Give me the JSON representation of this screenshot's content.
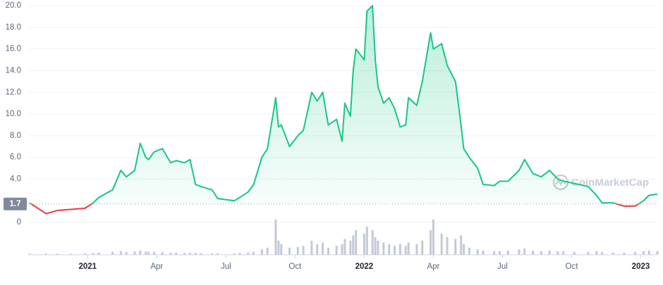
{
  "chart_data": {
    "type": "line",
    "x": [
      2020.79,
      2020.85,
      2020.89,
      2020.94,
      2020.99,
      2021.02,
      2021.04,
      2021.09,
      2021.12,
      2021.14,
      2021.17,
      2021.19,
      2021.21,
      2021.22,
      2021.24,
      2021.27,
      2021.3,
      2021.32,
      2021.35,
      2021.37,
      2021.39,
      2021.41,
      2021.45,
      2021.47,
      2021.53,
      2021.55,
      2021.58,
      2021.6,
      2021.63,
      2021.65,
      2021.68,
      2021.69,
      2021.7,
      2021.73,
      2021.76,
      2021.78,
      2021.81,
      2021.83,
      2021.85,
      2021.87,
      2021.9,
      2021.92,
      2021.93,
      2021.95,
      2021.96,
      2021.97,
      2022.0,
      2022.01,
      2022.03,
      2022.04,
      2022.05,
      2022.07,
      2022.09,
      2022.11,
      2022.13,
      2022.15,
      2022.16,
      2022.19,
      2022.21,
      2022.24,
      2022.25,
      2022.28,
      2022.3,
      2022.33,
      2022.35,
      2022.36,
      2022.38,
      2022.41,
      2022.43,
      2022.47,
      2022.49,
      2022.52,
      2022.56,
      2022.58,
      2022.61,
      2022.64,
      2022.67,
      2022.7,
      2022.72,
      2022.76,
      2022.81,
      2022.84,
      2022.86,
      2022.9,
      2022.94,
      2022.98,
      2023.01,
      2023.03,
      2023.06
    ],
    "values": [
      1.8,
      0.8,
      1.1,
      1.2,
      1.3,
      1.8,
      2.3,
      3.0,
      4.8,
      4.2,
      4.8,
      7.3,
      6.0,
      5.8,
      6.5,
      6.8,
      5.5,
      5.7,
      5.5,
      5.8,
      3.5,
      3.3,
      3.0,
      2.2,
      2.0,
      2.3,
      2.8,
      3.5,
      6.0,
      6.8,
      11.5,
      8.8,
      9.0,
      7.0,
      8.0,
      8.5,
      12.0,
      11.2,
      12.0,
      9.0,
      9.5,
      7.5,
      11.0,
      9.8,
      14.0,
      16.0,
      15.0,
      19.5,
      20.0,
      15.0,
      12.5,
      11.0,
      11.5,
      10.5,
      8.8,
      9.0,
      11.5,
      10.8,
      13.0,
      17.5,
      16.0,
      16.5,
      14.5,
      13.0,
      9.0,
      6.8,
      6.0,
      5.0,
      3.5,
      3.4,
      3.8,
      3.8,
      4.8,
      5.8,
      4.5,
      4.2,
      4.8,
      4.0,
      3.8,
      3.6,
      3.3,
      2.5,
      1.8,
      1.8,
      1.5,
      1.5,
      2.0,
      2.5,
      2.6
    ],
    "volume": [
      3,
      3,
      3,
      3,
      4,
      5,
      6,
      8,
      10,
      8,
      9,
      12,
      9,
      8,
      8,
      7,
      6,
      6,
      5,
      6,
      5,
      4,
      4,
      4,
      4,
      5,
      6,
      8,
      15,
      20,
      100,
      40,
      30,
      20,
      22,
      25,
      40,
      30,
      35,
      20,
      25,
      30,
      45,
      40,
      55,
      70,
      60,
      80,
      70,
      50,
      40,
      35,
      30,
      25,
      30,
      25,
      35,
      30,
      40,
      70,
      100,
      60,
      50,
      45,
      55,
      30,
      20,
      15,
      12,
      10,
      10,
      12,
      15,
      18,
      12,
      10,
      12,
      10,
      10,
      8,
      8,
      10,
      8,
      6,
      6,
      8,
      10,
      12,
      10
    ],
    "baseline": 1.7,
    "color_up": "#16c784",
    "color_down": "#ea3943",
    "volume_color": "#c4c9d6",
    "xlim": [
      2020.785,
      2023.06
    ],
    "xticks": [
      {
        "value": 2021,
        "label": "2021"
      },
      {
        "value": 2021.25,
        "label": "Apr"
      },
      {
        "value": 2021.5,
        "label": "Jul"
      },
      {
        "value": 2021.75,
        "label": "Oct"
      },
      {
        "value": 2022,
        "label": "2022"
      },
      {
        "value": 2022.25,
        "label": "Apr"
      },
      {
        "value": 2022.5,
        "label": "Jul"
      },
      {
        "value": 2022.75,
        "label": "Oct"
      },
      {
        "value": 2023,
        "label": "2023"
      }
    ],
    "ylim": [
      0,
      20.2
    ],
    "yticks": [
      0,
      {
        "value": 4,
        "label": "4.0"
      },
      {
        "value": 6,
        "label": "6.0"
      },
      {
        "value": 8,
        "label": "8.0"
      },
      {
        "value": 10,
        "label": "10.0"
      },
      {
        "value": 12,
        "label": "12.0"
      },
      {
        "value": 14,
        "label": "14.0"
      },
      {
        "value": 16,
        "label": "16.0"
      },
      {
        "value": 18,
        "label": "18.0"
      },
      {
        "value": 20,
        "label": "20.0"
      }
    ],
    "grid": true,
    "watermark": "CoinMarketCap"
  }
}
